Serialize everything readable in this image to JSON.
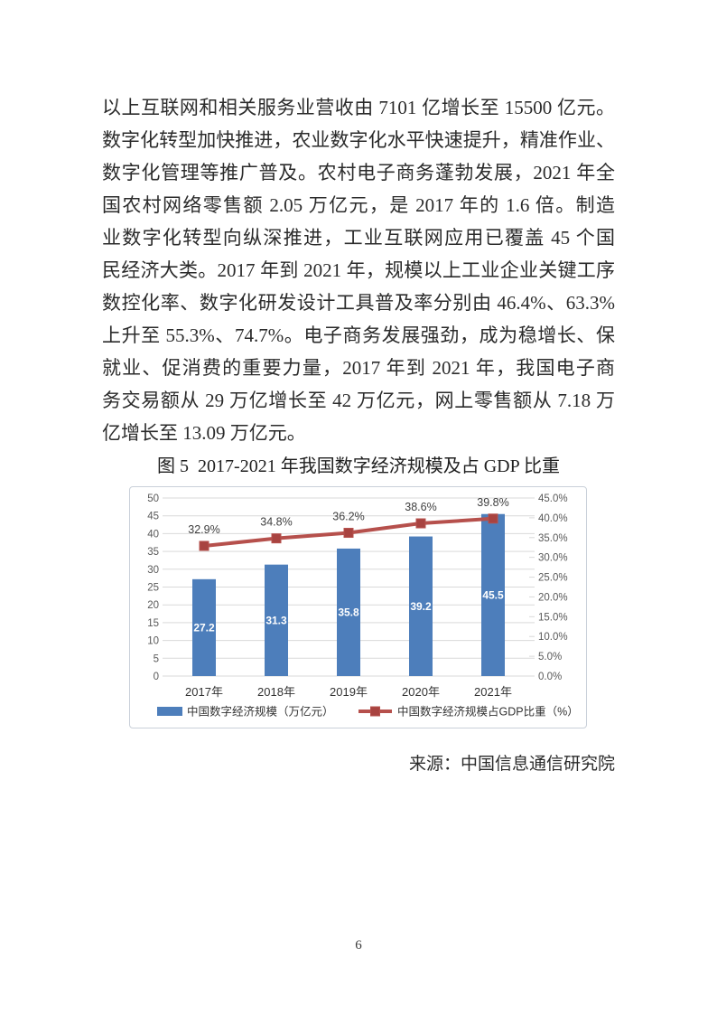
{
  "page": {
    "paragraph_lines": [
      "以上互联网和相关服务业营收由 7101 亿增长至 15500 亿元。",
      "数字化转型加快推进，农业数字化水平快速提升，精准作业、",
      "数字化管理等推广普及。农村电子商务蓬勃发展，2021 年全",
      "国农村网络零售额 2.05 万亿元，是 2017 年的 1.6 倍。制造",
      "业数字化转型向纵深推进，工业互联网应用已覆盖 45 个国",
      "民经济大类。2017 年到 2021 年，规模以上工业企业关键工序",
      "数控化率、数字化研发设计工具普及率分别由 46.4%、63.3%",
      "上升至 55.3%、74.7%。电子商务发展强劲，成为稳增长、保",
      "就业、促消费的重要力量，2017 年到 2021 年，我国电子商",
      "务交易额从 29 万亿增长至 42 万亿元，网上零售额从 7.18 万",
      "亿增长至 13.09 万亿元。"
    ],
    "figure_title": "图 5  2017-2021 年我国数字经济规模及占 GDP 比重",
    "source": "来源：中国信息通信研究院",
    "page_number": "6"
  },
  "chart_data": {
    "type": "combo-bar-line",
    "title": "2017-2021 年我国数字经济规模及占 GDP 比重",
    "categories": [
      "2017年",
      "2018年",
      "2019年",
      "2020年",
      "2021年"
    ],
    "series": [
      {
        "name": "中国数字经济规模（万亿元）",
        "type": "bar",
        "axis": "left",
        "values": [
          27.2,
          31.3,
          35.8,
          39.2,
          45.5
        ],
        "data_labels": [
          "27.2",
          "31.3",
          "35.8",
          "39.2",
          "45.5"
        ]
      },
      {
        "name": "中国数字经济规模占GDP比重（%）",
        "type": "line",
        "axis": "right",
        "values": [
          32.9,
          34.8,
          36.2,
          38.6,
          39.8
        ],
        "data_labels": [
          "32.9%",
          "34.8%",
          "36.2%",
          "38.6%",
          "39.8%"
        ]
      }
    ],
    "left_axis": {
      "min": 0,
      "max": 50,
      "step": 5
    },
    "right_axis": {
      "min": 0,
      "max": 45,
      "step": 5,
      "suffix": "%"
    },
    "grid": true,
    "legend_position": "bottom",
    "colors": {
      "bar": "#4D7EBB",
      "line": "#B6504C",
      "marker": "#A84340",
      "grid": "#D9D9D9",
      "axis_text": "#595959",
      "category_text": "#333333",
      "pct_label_text": "#3F3F3F",
      "bar_label_text": "#FFFFFF",
      "border": "#C9D0D9"
    }
  }
}
